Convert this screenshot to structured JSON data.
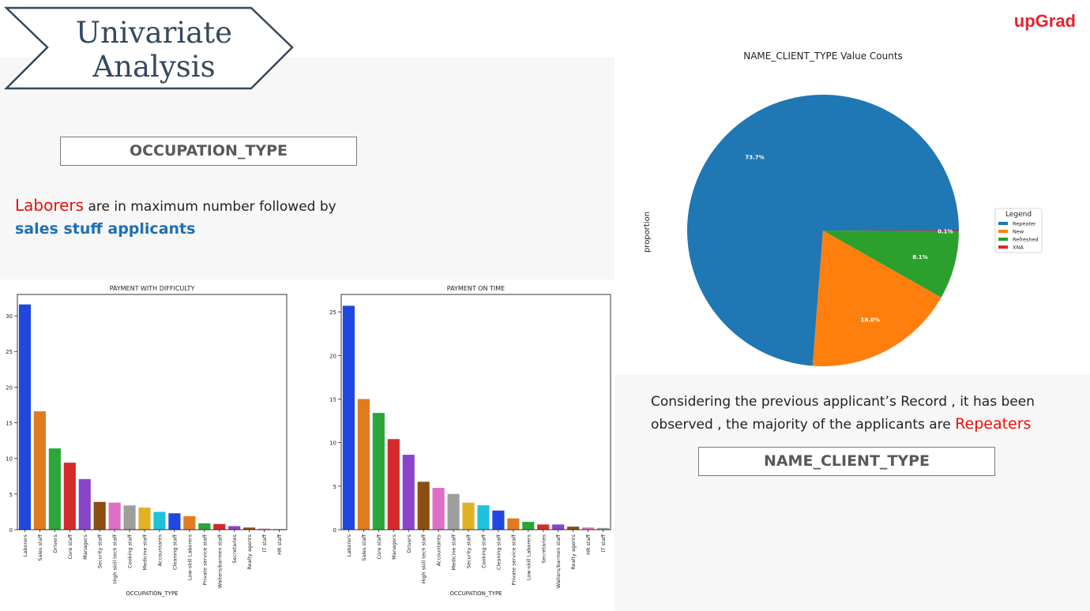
{
  "slide": {
    "title_line1": "Univariate",
    "title_line2": "Analysis",
    "brand": "upGrad"
  },
  "occupation_section": {
    "label": "OCCUPATION_TYPE",
    "insight_highlight": "Laborers",
    "insight_middle": " are in maximum number followed by",
    "insight_line2": "sales stuff applicants"
  },
  "client_section": {
    "label": "NAME_CLIENT_TYPE",
    "insight_line1": "Considering the previous applicant’s Record , it has been",
    "insight_line2_start": "observed , the majority of the applicants are ",
    "insight_highlight": "Repeaters"
  },
  "colors": {
    "accent_red": "#e8100a",
    "accent_blue": "#1f6fb4",
    "bar_palette": [
      "#2048e0",
      "#e07b22",
      "#2aa63a",
      "#d42a2a",
      "#8a44c9",
      "#8b4f13",
      "#df6fc6",
      "#9e9e9e",
      "#e0b224",
      "#1fc2dc"
    ]
  },
  "chart_data": [
    {
      "id": "difficulty",
      "type": "bar",
      "title": "PAYMENT WITH DIFFICULTY",
      "xlabel": "OCCUPATION_TYPE",
      "ylabel": "",
      "ylim": [
        0,
        33
      ],
      "yticks": [
        0,
        5,
        10,
        15,
        20,
        25,
        30
      ],
      "categories": [
        "Laborers",
        "Sales staff",
        "Drivers",
        "Core staff",
        "Managers",
        "Security staff",
        "High skill tech staff",
        "Cooking staff",
        "Medicine staff",
        "Accountants",
        "Cleaning staff",
        "Low-skill Laborers",
        "Private service staff",
        "Waiters/barmen staff",
        "Secretaries",
        "Realty agents",
        "IT staff",
        "HR staff"
      ],
      "values": [
        31.6,
        16.6,
        11.4,
        9.4,
        7.1,
        3.9,
        3.8,
        3.4,
        3.1,
        2.5,
        2.3,
        1.9,
        0.9,
        0.8,
        0.5,
        0.3,
        0.15,
        0.1
      ]
    },
    {
      "id": "ontime",
      "type": "bar",
      "title": "PAYMENT ON TIME",
      "xlabel": "OCCUPATION_TYPE",
      "ylabel": "",
      "ylim": [
        0,
        27
      ],
      "yticks": [
        0,
        5,
        10,
        15,
        20,
        25
      ],
      "categories": [
        "Laborers",
        "Sales staff",
        "Core staff",
        "Managers",
        "Drivers",
        "High skill tech staff",
        "Accountants",
        "Medicine staff",
        "Security staff",
        "Cooking staff",
        "Cleaning staff",
        "Private service staff",
        "Low-skill Laborers",
        "Secretaries",
        "Waiters/barmen staff",
        "Realty agents",
        "HR staff",
        "IT staff"
      ],
      "values": [
        25.7,
        15.0,
        13.4,
        10.4,
        8.6,
        5.5,
        4.8,
        4.1,
        3.1,
        2.8,
        2.2,
        1.3,
        0.9,
        0.6,
        0.6,
        0.35,
        0.25,
        0.2
      ]
    },
    {
      "id": "client_type",
      "type": "pie",
      "title": "NAME_CLIENT_TYPE Value Counts",
      "ylabel": "proportion",
      "legend_title": "Legend",
      "legend_position": "right",
      "labels": [
        "Repeater",
        "New",
        "Refreshed",
        "XNA"
      ],
      "values": [
        73.7,
        18.0,
        8.1,
        0.1
      ],
      "value_labels": [
        "73.7%",
        "18.0%",
        "8.1%",
        "0.1%"
      ],
      "colors": [
        "#1f77b4",
        "#ff7f0e",
        "#2ca02c",
        "#d62728"
      ]
    }
  ]
}
